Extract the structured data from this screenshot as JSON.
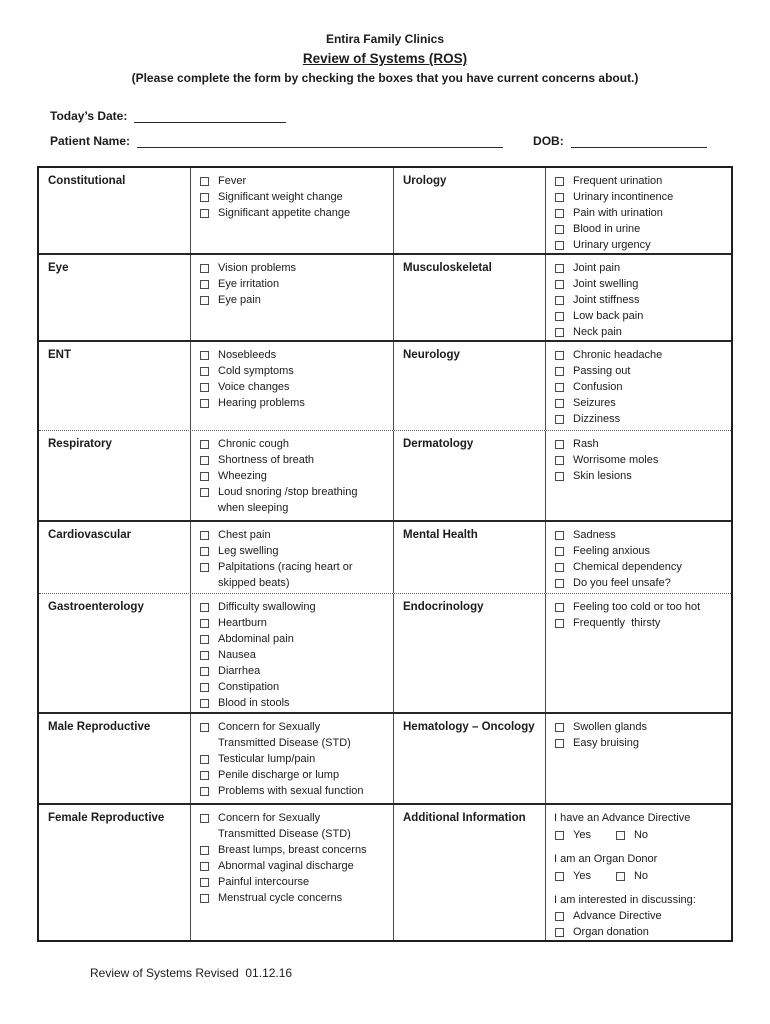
{
  "header": {
    "clinic_name": "Entira Family Clinics",
    "form_title": "Review of Systems (ROS)",
    "instructions": "(Please complete the form by checking the boxes that you have current concerns about.)",
    "todays_date_label": "Today’s Date:",
    "patient_name_label": "Patient Name:",
    "dob_label": "DOB:",
    "todays_date_value": "",
    "patient_name_value": "",
    "dob_value": ""
  },
  "colors": {
    "ink": "#1c1c1c",
    "border": "#262626",
    "background": "#ffffff"
  },
  "table": {
    "rows": [
      {
        "left": {
          "category": "Constitutional",
          "items": [
            "Fever",
            "Significant weight change",
            "Significant appetite change"
          ]
        },
        "right": {
          "category": "Urology",
          "items": [
            "Frequent urination",
            "Urinary incontinence",
            "Pain with urination",
            "Blood in urine",
            "Urinary urgency"
          ]
        }
      },
      {
        "left": {
          "category": "Eye",
          "items": [
            "Vision problems",
            "Eye irritation",
            "Eye pain"
          ]
        },
        "right": {
          "category": "Musculoskeletal",
          "items": [
            "Joint pain",
            "Joint swelling",
            "Joint stiffness",
            "Low back pain",
            "Neck pain"
          ]
        }
      },
      {
        "left": {
          "category": "ENT",
          "items": [
            "Nosebleeds",
            "Cold symptoms",
            "Voice changes",
            "Hearing problems"
          ]
        },
        "right": {
          "category": "Neurology",
          "items": [
            "Chronic headache",
            "Passing out",
            "Confusion",
            "Seizures",
            "Dizziness"
          ]
        }
      },
      {
        "left": {
          "category": "Respiratory",
          "items": [
            "Chronic cough",
            "Shortness of breath",
            "Wheezing",
            "Loud snoring /stop breathing when sleeping"
          ]
        },
        "right": {
          "category": "Dermatology",
          "items": [
            "Rash",
            "Worrisome moles",
            "Skin lesions"
          ]
        }
      },
      {
        "left": {
          "category": "Cardiovascular",
          "items": [
            "Chest pain",
            "Leg swelling",
            "Palpitations (racing heart or skipped beats)"
          ]
        },
        "right": {
          "category": "Mental Health",
          "items": [
            "Sadness",
            "Feeling anxious",
            "Chemical dependency",
            "Do you feel unsafe?"
          ]
        }
      },
      {
        "left": {
          "category": "Gastroenterology",
          "items": [
            "Difficulty swallowing",
            "Heartburn",
            "Abdominal pain",
            "Nausea",
            "Diarrhea",
            "Constipation",
            "Blood in stools"
          ]
        },
        "right": {
          "category": "Endocrinology",
          "items": [
            "Feeling too cold or too hot",
            "Frequently  thirsty"
          ]
        }
      },
      {
        "left": {
          "category": "Male Reproductive",
          "items": [
            "Concern for Sexually Transmitted Disease (STD)",
            "Testicular lump/pain",
            "Penile discharge or lump",
            "Problems with sexual function"
          ]
        },
        "right": {
          "category": "Hematology – Oncology",
          "items": [
            "Swollen glands",
            "Easy bruising"
          ]
        }
      },
      {
        "left": {
          "category": "Female Reproductive",
          "items": [
            "Concern for Sexually Transmitted Disease (STD)",
            "Breast lumps, breast concerns",
            "Abnormal vaginal discharge",
            "Painful intercourse",
            "Menstrual cycle concerns"
          ]
        },
        "right": {
          "category": "Additional Information",
          "blocks": [
            {
              "text": "I have an Advance Directive",
              "options": [
                "Yes",
                "No"
              ]
            },
            {
              "text": "I am an Organ Donor",
              "options": [
                "Yes",
                "No"
              ]
            },
            {
              "text": "I am interested in discussing:",
              "items": [
                "Advance Directive",
                "Organ donation"
              ]
            }
          ]
        }
      }
    ]
  },
  "footer": {
    "revision_text": "Review of Systems Revised  01.12.16"
  }
}
